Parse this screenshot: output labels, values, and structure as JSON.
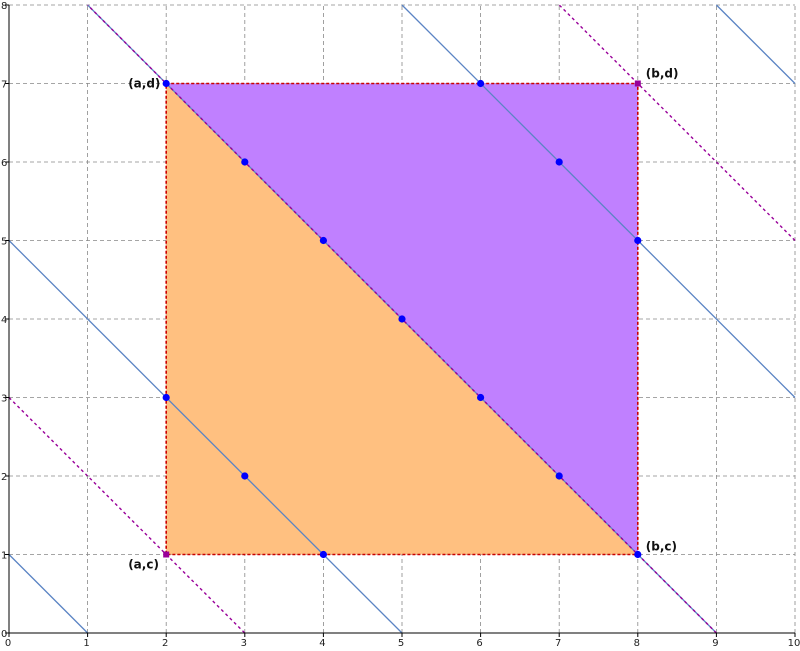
{
  "chart_data": {
    "type": "scatter",
    "title": "",
    "xlabel": "",
    "ylabel": "",
    "xlim": [
      0,
      10
    ],
    "ylim": [
      0,
      8
    ],
    "x_ticks": [
      0,
      1,
      2,
      3,
      4,
      5,
      6,
      7,
      8,
      9,
      10
    ],
    "y_ticks": [
      0,
      1,
      2,
      3,
      4,
      5,
      6,
      7,
      8
    ],
    "grid": true,
    "colors": {
      "lower_triangle_fill": "#ffc080",
      "upper_triangle_fill": "#c080ff",
      "rectangle_border": "#cc0000",
      "solid_lines": "#5b84c4",
      "dotted_lines": "#990099",
      "points": "#0000ff",
      "corner_markers": "#990099",
      "grid": "#888888"
    },
    "rectangle": {
      "x": [
        2,
        8
      ],
      "y": [
        1,
        7
      ]
    },
    "lower_triangle": [
      [
        2,
        1
      ],
      [
        8,
        1
      ],
      [
        2,
        7
      ]
    ],
    "upper_triangle": [
      [
        2,
        7
      ],
      [
        8,
        7
      ],
      [
        8,
        1
      ]
    ],
    "solid_lines_x_plus_y": [
      1,
      5,
      13,
      17
    ],
    "dotted_lines_x_plus_y": [
      3,
      15
    ],
    "diagonal_x_plus_y": 9,
    "points": [
      [
        2,
        7
      ],
      [
        3,
        6
      ],
      [
        4,
        5
      ],
      [
        5,
        4
      ],
      [
        6,
        3
      ],
      [
        7,
        2
      ],
      [
        8,
        1
      ],
      [
        2,
        3
      ],
      [
        3,
        2
      ],
      [
        4,
        1
      ],
      [
        6,
        7
      ],
      [
        7,
        6
      ],
      [
        8,
        5
      ]
    ],
    "corner_labels": [
      {
        "text": "(a,d)",
        "x": 2,
        "y": 7
      },
      {
        "text": "(b,d)",
        "x": 8,
        "y": 7
      },
      {
        "text": "(a,c)",
        "x": 2,
        "y": 1
      },
      {
        "text": "(b,c)",
        "x": 8,
        "y": 1
      }
    ]
  }
}
